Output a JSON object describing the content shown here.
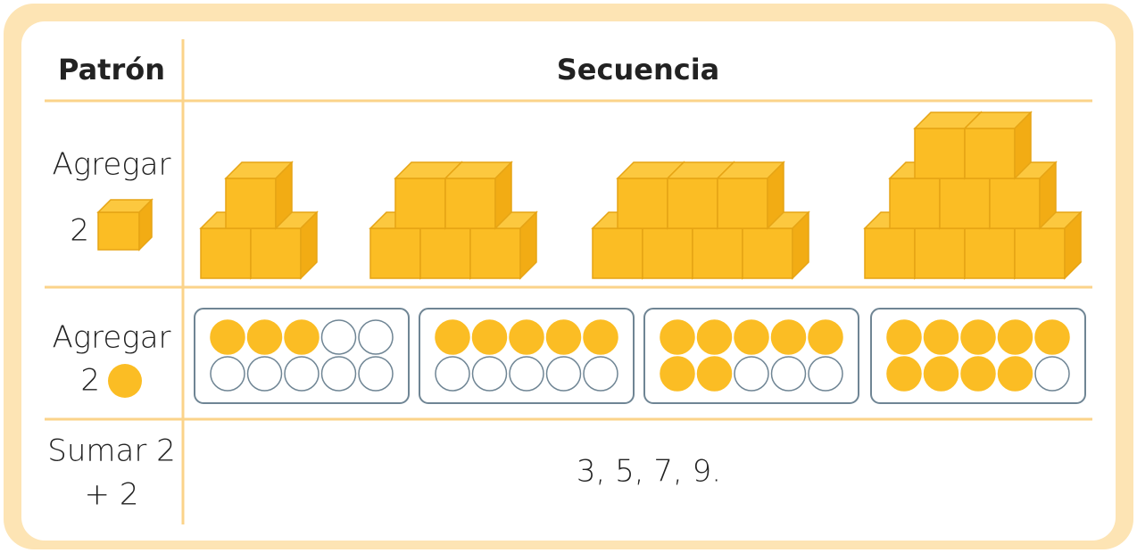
{
  "header": {
    "pattern": "Patrón",
    "sequence": "Secuencia"
  },
  "rows": [
    {
      "label": "Agregar",
      "amount": "2"
    },
    {
      "label": "Agregar",
      "amount": "2"
    },
    {
      "label": "Sumar 2",
      "amount": "+ 2",
      "sequence_text": "3, 5, 7, 9."
    }
  ],
  "figures": {
    "cubes": [
      3,
      5,
      7,
      9
    ],
    "filled_dots": [
      3,
      5,
      7,
      9
    ]
  }
}
